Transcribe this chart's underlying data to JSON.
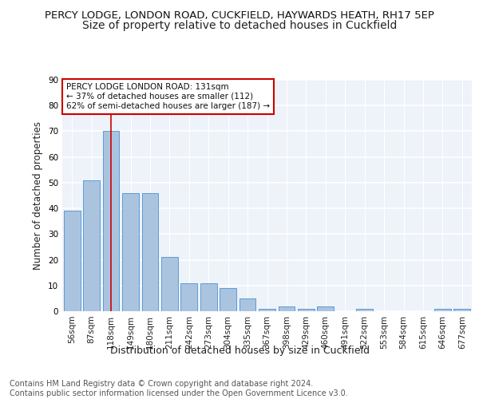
{
  "title1": "PERCY LODGE, LONDON ROAD, CUCKFIELD, HAYWARDS HEATH, RH17 5EP",
  "title2": "Size of property relative to detached houses in Cuckfield",
  "xlabel": "Distribution of detached houses by size in Cuckfield",
  "ylabel": "Number of detached properties",
  "categories": [
    "56sqm",
    "87sqm",
    "118sqm",
    "149sqm",
    "180sqm",
    "211sqm",
    "242sqm",
    "273sqm",
    "304sqm",
    "335sqm",
    "367sqm",
    "398sqm",
    "429sqm",
    "460sqm",
    "491sqm",
    "522sqm",
    "553sqm",
    "584sqm",
    "615sqm",
    "646sqm",
    "677sqm"
  ],
  "values": [
    39,
    51,
    70,
    46,
    46,
    21,
    11,
    11,
    9,
    5,
    1,
    2,
    1,
    2,
    0,
    1,
    0,
    0,
    0,
    1,
    1
  ],
  "bar_color": "#aac4e0",
  "bar_edge_color": "#5b9bd5",
  "ylim": [
    0,
    90
  ],
  "yticks": [
    0,
    10,
    20,
    30,
    40,
    50,
    60,
    70,
    80,
    90
  ],
  "property_line_x": 2,
  "property_line_color": "#cc0000",
  "annotation_text": "PERCY LODGE LONDON ROAD: 131sqm\n← 37% of detached houses are smaller (112)\n62% of semi-detached houses are larger (187) →",
  "annotation_box_color": "#ffffff",
  "annotation_box_edge": "#cc0000",
  "footer": "Contains HM Land Registry data © Crown copyright and database right 2024.\nContains public sector information licensed under the Open Government Licence v3.0.",
  "background_color": "#eef2f9",
  "grid_color": "#ffffff",
  "title1_fontsize": 9.5,
  "title2_fontsize": 10,
  "xlabel_fontsize": 9,
  "ylabel_fontsize": 8.5,
  "footer_fontsize": 7,
  "tick_fontsize": 7.5,
  "annotation_fontsize": 7.5
}
